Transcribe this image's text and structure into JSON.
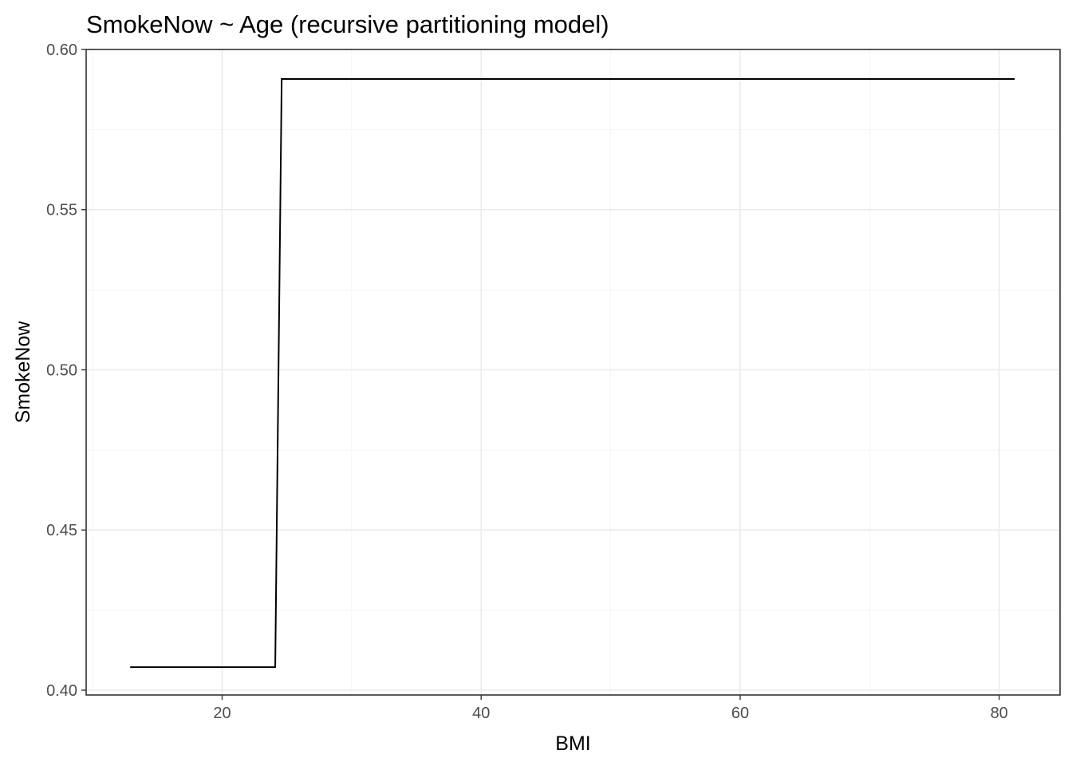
{
  "chart_data": {
    "type": "line",
    "title": "SmokeNow ~ Age (recursive partitioning model)",
    "xlabel": "BMI",
    "ylabel": "SmokeNow",
    "xlim": [
      9.5,
      84.7
    ],
    "ylim": [
      0.3985,
      0.6
    ],
    "x_ticks": [
      20,
      40,
      60,
      80
    ],
    "x_tick_labels": [
      "20",
      "40",
      "60",
      "80"
    ],
    "y_ticks": [
      0.4,
      0.45,
      0.5,
      0.55,
      0.6
    ],
    "y_tick_labels": [
      "0.40",
      "0.45",
      "0.50",
      "0.55",
      "0.60"
    ],
    "x_minor_ticks": [
      10,
      30,
      50,
      70
    ],
    "y_minor_ticks": [
      0.425,
      0.475,
      0.525,
      0.575
    ],
    "grid": true,
    "legend": "none",
    "series": [
      {
        "color": "#000000",
        "x": [
          12.9,
          24.1,
          24.6,
          81.2
        ],
        "y": [
          0.4072,
          0.4072,
          0.5908,
          0.5908
        ]
      }
    ]
  }
}
